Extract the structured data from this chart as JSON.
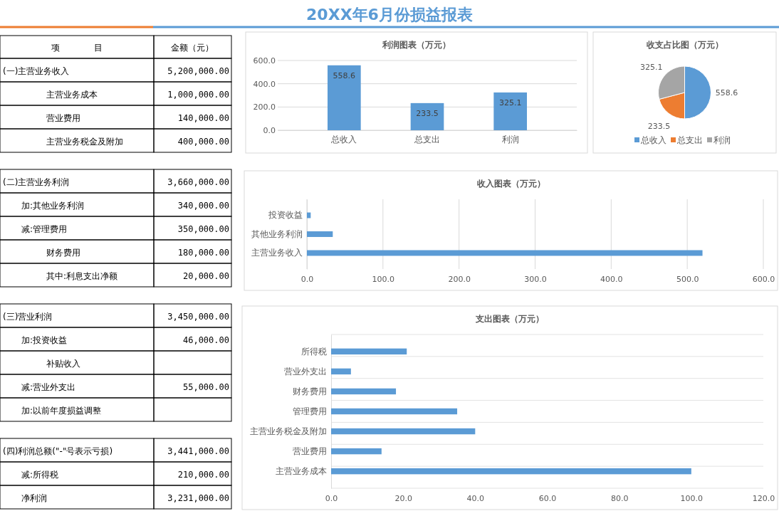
{
  "chart_data": [
    {
      "type": "other",
      "title": "20XX年6月份损益报表",
      "annotations": [
        "项　　　　目",
        "金额（元）",
        "(一)主营业务收入",
        "5,200,000.00",
        "主营业务成本",
        "1,000,000.00",
        "营业费用",
        "140,000.00",
        "主营业务税金及附加",
        "400,000.00",
        "(二)主营业务利润",
        "3,660,000.00",
        "加:其他业务利润",
        "340,000.00",
        "减:管理费用",
        "350,000.00",
        "财务费用",
        "180,000.00",
        "其中:利息支出净额",
        "20,000.00",
        "(三)营业利润",
        "3,450,000.00",
        "加:投资收益",
        "46,000.00",
        "补贴收入",
        null,
        "减:营业外支出",
        "55,000.00",
        "加:以前年度损益调整",
        null,
        "(四)利润总额(\"-\"号表示亏损)",
        "3,441,000.00",
        "减:所得税",
        "210,000.00",
        "净利润",
        "3,231,000.00"
      ]
    },
    {
      "type": "bar",
      "title": "利润图表（万元）",
      "categories": [
        "总收入",
        "总支出",
        "利润"
      ],
      "values": [
        558.6,
        233.5,
        325.1
      ],
      "color": "#5b9bd5",
      "ylim": [
        0,
        600
      ],
      "yticks": [
        {
          "value": 0,
          "label": "0.0"
        },
        {
          "value": 200,
          "label": "200.0"
        },
        {
          "value": 400,
          "label": "400.0"
        },
        {
          "value": 600,
          "label": "600.0"
        }
      ],
      "grid": "y",
      "data_labels": true
    },
    {
      "type": "pie",
      "title": "收支占比图（万元）",
      "categories": [
        "总收入",
        "总支出",
        "利润"
      ],
      "values": [
        558.6,
        233.5,
        325.1
      ],
      "colors": [
        "#5b9bd5",
        "#ed7d31",
        "#a5a5a5"
      ],
      "data_labels": true,
      "legend": "bottom"
    },
    {
      "type": "bar",
      "orientation": "horizontal",
      "title": "收入图表（万元）",
      "categories": [
        "投资收益",
        "其他业务利润",
        "主营业务收入"
      ],
      "values": [
        5,
        34,
        520
      ],
      "color": "#5b9bd5",
      "xlim": [
        0,
        600
      ],
      "xticks": [
        {
          "value": 0,
          "label": "0.0"
        },
        {
          "value": 100,
          "label": "100.0"
        },
        {
          "value": 200,
          "label": "200.0"
        },
        {
          "value": 300,
          "label": "300.0"
        },
        {
          "value": 400,
          "label": "400.0"
        },
        {
          "value": 500,
          "label": "500.0"
        },
        {
          "value": 600,
          "label": "600.0"
        }
      ],
      "grid": "x"
    },
    {
      "type": "bar",
      "orientation": "horizontal",
      "title": "支出图表（万元）",
      "categories": [
        "所得税",
        "营业外支出",
        "财务费用",
        "管理费用",
        "主营业务税金及附加",
        "营业费用",
        "主营业务成本"
      ],
      "values": [
        21,
        5.5,
        18,
        35,
        40,
        14,
        100
      ],
      "color": "#5b9bd5",
      "xlim": [
        0,
        120
      ],
      "xticks": [
        {
          "value": 0,
          "label": "0.0"
        },
        {
          "value": 20,
          "label": "20.0"
        },
        {
          "value": 40,
          "label": "40.0"
        },
        {
          "value": 60,
          "label": "60.0"
        },
        {
          "value": 80,
          "label": "80.0"
        },
        {
          "value": 100,
          "label": "100.0"
        },
        {
          "value": 120,
          "label": "120.0"
        }
      ],
      "grid": "y"
    }
  ]
}
